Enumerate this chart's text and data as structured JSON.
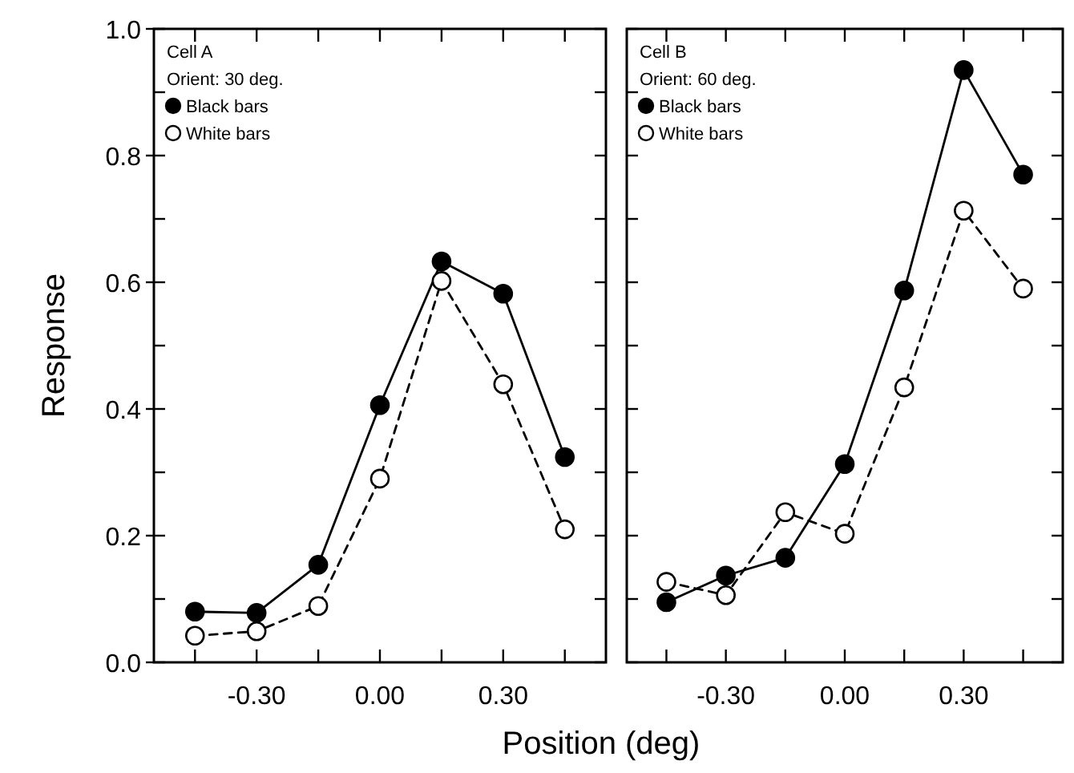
{
  "chart_data": [
    {
      "type": "line",
      "ylabel": "Response",
      "xlabel": "Position (deg)",
      "annotations": [
        "Cell A",
        "Orient: 30 deg."
      ],
      "x": [
        -0.45,
        -0.3,
        -0.15,
        0,
        0.15,
        0.3,
        0.45
      ],
      "series": [
        {
          "name": "Black bars",
          "color": "#000000",
          "line_style": "solid",
          "values": [
            0.08,
            0.078,
            0.154,
            0.406,
            0.633,
            0.582,
            0.324
          ]
        },
        {
          "name": "White bars",
          "color": "#ffffff",
          "line_style": "dashed",
          "values": [
            0.042,
            0.049,
            0.089,
            0.29,
            0.602,
            0.439,
            0.21
          ]
        }
      ],
      "xlim": [
        -0.55,
        0.55
      ],
      "xticks": [
        {
          "value": -0.45,
          "label": null
        },
        "-0.30",
        {
          "value": -0.15,
          "label": null
        },
        {
          "value": 0,
          "label": "0.00"
        },
        {
          "value": 0.15,
          "label": null
        },
        {
          "value": 0.3,
          "label": "0.30"
        },
        {
          "value": 0.45,
          "label": null
        }
      ],
      "ylim": [
        0,
        1
      ],
      "yticks": [
        {
          "value": 0,
          "label": "0.0"
        },
        {
          "value": 0.1,
          "label": null
        },
        {
          "value": 0.2,
          "label": "0.2"
        },
        {
          "value": 0.3,
          "label": null
        },
        {
          "value": 0.4,
          "label": "0.4"
        },
        {
          "value": 0.5,
          "label": null
        },
        {
          "value": 0.6,
          "label": "0.6"
        },
        {
          "value": 0.7,
          "label": null
        },
        {
          "value": 0.8,
          "label": "0.8"
        },
        {
          "value": 0.9,
          "label": null
        },
        {
          "value": 1,
          "label": "1.0"
        }
      ],
      "marker": "circle",
      "legend": "top left",
      "grid": false
    },
    {
      "type": "line",
      "annotations": [
        "Cell B",
        "Orient: 60 deg."
      ],
      "x": [
        -0.45,
        -0.3,
        -0.15,
        0,
        0.15,
        0.3,
        0.45
      ],
      "series": [
        {
          "name": "Black bars",
          "color": "#000000",
          "line_style": "solid",
          "values": [
            0.095,
            0.137,
            0.165,
            0.313,
            0.587,
            0.935,
            0.77
          ]
        },
        {
          "name": "White bars",
          "color": "#ffffff",
          "line_style": "dashed",
          "values": [
            0.127,
            0.106,
            0.237,
            0.203,
            0.434,
            0.713,
            0.59
          ]
        }
      ],
      "xlim": [
        -0.55,
        0.55
      ],
      "xticks": [
        {
          "value": -0.45,
          "label": null
        },
        "-0.30",
        {
          "value": -0.15,
          "label": null
        },
        {
          "value": 0,
          "label": "0.00"
        },
        {
          "value": 0.15,
          "label": null
        },
        {
          "value": 0.3,
          "label": "0.30"
        },
        {
          "value": 0.45,
          "label": null
        }
      ],
      "ylim": [
        0,
        1
      ],
      "yticks": [
        {
          "value": 0,
          "label": null
        },
        {
          "value": 0.1,
          "label": null
        },
        {
          "value": 0.2,
          "label": null
        },
        {
          "value": 0.3,
          "label": null
        },
        {
          "value": 0.4,
          "label": null
        },
        {
          "value": 0.5,
          "label": null
        },
        {
          "value": 0.6,
          "label": null
        },
        {
          "value": 0.7,
          "label": null
        },
        {
          "value": 0.8,
          "label": null
        },
        {
          "value": 0.9,
          "label": null
        },
        {
          "value": 1,
          "label": null
        }
      ],
      "marker": "circle",
      "legend": "top left",
      "grid": false,
      "tick_labels": "x"
    }
  ]
}
